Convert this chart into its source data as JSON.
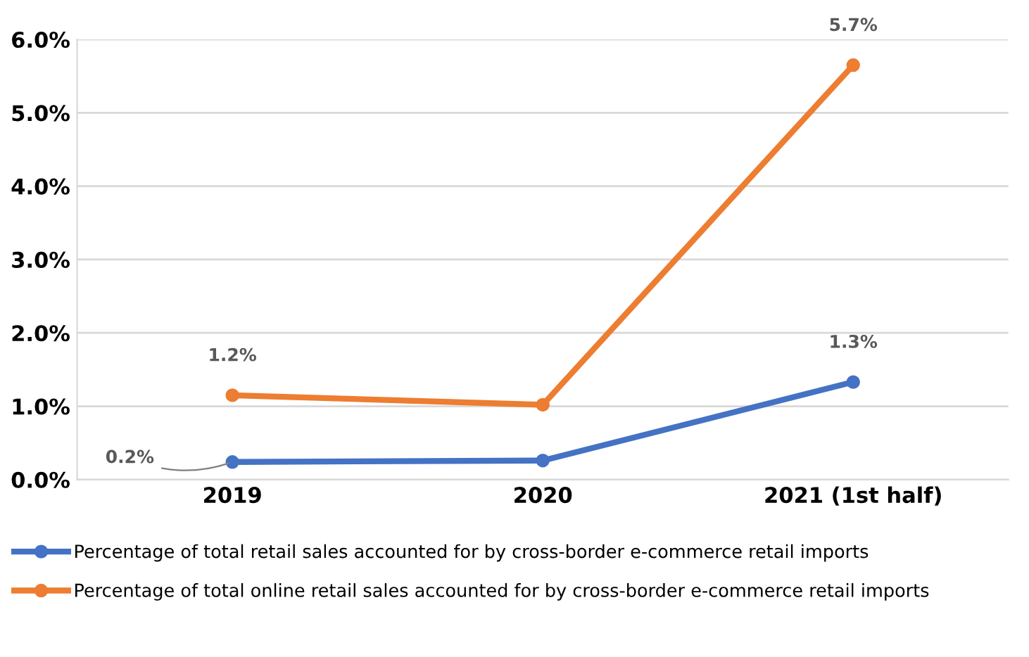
{
  "chart_data": {
    "type": "line",
    "categories": [
      "2019",
      "2020",
      "2021 (1st half)"
    ],
    "series": [
      {
        "name": "Percentage of total retail sales accounted for by cross-border e-commerce retail imports",
        "color": "#4472c4",
        "values": [
          0.24,
          0.26,
          1.33
        ],
        "value_labels": [
          "0.2%",
          null,
          "1.3%"
        ]
      },
      {
        "name": "Percentage of total online retail sales accounted for by cross-border e-commerce retail imports",
        "color": "#ed7d31",
        "values": [
          1.15,
          1.02,
          5.65
        ],
        "value_labels": [
          "1.2%",
          null,
          "5.7%"
        ]
      }
    ],
    "ylim": [
      0,
      6
    ],
    "yticks": [
      {
        "value": 0,
        "label": "0.0%"
      },
      {
        "value": 1,
        "label": "1.0%"
      },
      {
        "value": 2,
        "label": "2.0%"
      },
      {
        "value": 3,
        "label": "3.0%"
      },
      {
        "value": 4,
        "label": "4.0%"
      },
      {
        "value": 5,
        "label": "5.0%"
      },
      {
        "value": 6,
        "label": "6.0%"
      }
    ],
    "grid": "y",
    "legend": "bottom",
    "marker": "circle",
    "line_style": "solid"
  }
}
